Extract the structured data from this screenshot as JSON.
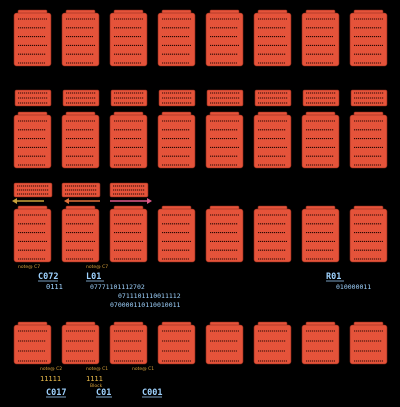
{
  "codes": {
    "c1": "C072",
    "c2": "0111",
    "c3": "L01",
    "c4": "07771101112702",
    "c5": "0711101110011112",
    "c6": "070000110110010011",
    "c7": "R01",
    "c8": "010000011",
    "c9": "11111",
    "c10": "C017",
    "c11": "1111",
    "c12": "C01",
    "c13": "C001"
  },
  "tags": {
    "t1": "note@ C7",
    "t2": "note@ C7",
    "t3": "note@ C2",
    "t4": "note@ C1",
    "t5": "note@ C1",
    "t6": "Block"
  },
  "colors": {
    "card": "#e5533a",
    "code": "#9fd3ff",
    "tag": "#d9a23a",
    "arrow_left": "#c9a23a",
    "arrow_mid": "#e0703a",
    "arrow_right": "#e05a8a"
  }
}
